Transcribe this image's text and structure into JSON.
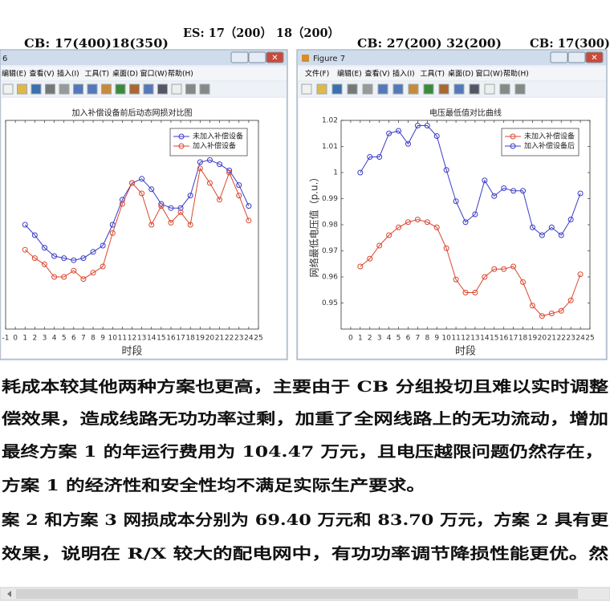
{
  "document": {
    "header": [
      "CB: 17(400)18(350)",
      "ES: 17（200） 18（200）",
      "CB: 27(200) 32(200)",
      "CB: 17(300)"
    ],
    "paragraphs": [
      "耗成本较其他两种方案也更高，主要由于 CB 分组投切且难以实时调整",
      "偿效果，造成线路无功功率过剩，加重了全网线路上的无功流动，增加",
      "最终方案 1 的年运行费用为 104.47 万元，且电压越限问题仍然存在，",
      "方案 1 的经济性和安全性均不满足实际生产要求。",
      "案 2 和方案 3 网损成本分别为 69.40 万元和 83.70 万元，方案 2 具有更",
      "效果，说明在  R/X  较大的配电网中，有功功率调节降损性能更优。然"
    ]
  },
  "windows": [
    {
      "title": "6",
      "menu": [
        "编辑(E)",
        "查看(V)",
        "插入(I)",
        "工具(T)",
        "桌面(D)",
        "窗口(W)",
        "帮助(H)"
      ]
    },
    {
      "title": "Figure 7",
      "menu": [
        "文件(F)",
        "编辑(E)",
        "查看(V)",
        "插入(I)",
        "工具(T)",
        "桌面(D)",
        "窗口(W)",
        "帮助(H)"
      ]
    }
  ],
  "chart_data": [
    {
      "type": "line",
      "title": "加入补偿设备前后动态网损对比图",
      "xlabel": "时段",
      "x": [
        1,
        2,
        3,
        4,
        5,
        6,
        7,
        8,
        9,
        10,
        11,
        12,
        13,
        14,
        15,
        16,
        17,
        18,
        19,
        20,
        21,
        22,
        23,
        24
      ],
      "xlim": [
        -1,
        25
      ],
      "xticks": [
        -1,
        0,
        1,
        2,
        3,
        4,
        5,
        6,
        7,
        8,
        9,
        10,
        11,
        12,
        13,
        14,
        15,
        16,
        17,
        18,
        19,
        20,
        21,
        22,
        23,
        24,
        25
      ],
      "ylim": [
        0,
        10
      ],
      "legend": "upper right",
      "series": [
        {
          "name": "未加入补偿设备",
          "color": "#3b3bc8",
          "values": [
            5.0,
            4.5,
            3.9,
            3.5,
            3.4,
            3.3,
            3.4,
            3.7,
            4.0,
            5.0,
            6.2,
            7.0,
            7.2,
            6.7,
            6.0,
            5.8,
            5.8,
            6.4,
            8.0,
            8.1,
            7.9,
            7.6,
            6.9,
            5.9
          ]
        },
        {
          "name": "加入补偿设备",
          "color": "#d9472f",
          "values": [
            3.8,
            3.4,
            3.1,
            2.5,
            2.5,
            2.8,
            2.4,
            2.7,
            3.0,
            4.6,
            6.0,
            7.0,
            6.5,
            5.0,
            5.9,
            5.1,
            5.6,
            5.0,
            7.7,
            7.0,
            6.2,
            7.5,
            6.4,
            5.2
          ]
        }
      ]
    },
    {
      "type": "line",
      "title": "电压最低值对比曲线",
      "xlabel": "时段",
      "ylabel": "网络最低电压值（p.u.）",
      "x": [
        1,
        2,
        3,
        4,
        5,
        6,
        7,
        8,
        9,
        10,
        11,
        12,
        13,
        14,
        15,
        16,
        17,
        18,
        19,
        20,
        21,
        22,
        23,
        24
      ],
      "xlim": [
        -1,
        25
      ],
      "xticks": [
        0,
        1,
        2,
        3,
        4,
        5,
        6,
        7,
        8,
        9,
        10,
        11,
        12,
        13,
        14,
        15,
        16,
        17,
        18,
        19,
        20,
        21,
        22,
        23,
        24,
        25
      ],
      "ylim": [
        0.94,
        1.02
      ],
      "yticks": [
        0.95,
        0.96,
        0.97,
        0.98,
        0.99,
        1,
        1.01,
        1.02
      ],
      "legend": "upper right",
      "series": [
        {
          "name": "未加入补偿设备",
          "color": "#d9472f",
          "values": [
            0.964,
            0.967,
            0.972,
            0.976,
            0.979,
            0.981,
            0.982,
            0.981,
            0.979,
            0.971,
            0.959,
            0.954,
            0.954,
            0.96,
            0.963,
            0.963,
            0.964,
            0.958,
            0.949,
            0.945,
            0.946,
            0.947,
            0.951,
            0.961
          ]
        },
        {
          "name": "加入补偿设备后",
          "color": "#3b3bc8",
          "values": [
            1,
            1.006,
            1.006,
            1.015,
            1.016,
            1.011,
            1.018,
            1.018,
            1.014,
            1.001,
            0.989,
            0.981,
            0.984,
            0.997,
            0.991,
            0.994,
            0.993,
            0.993,
            0.979,
            0.976,
            0.979,
            0.976,
            0.982,
            0.992
          ]
        }
      ]
    }
  ]
}
